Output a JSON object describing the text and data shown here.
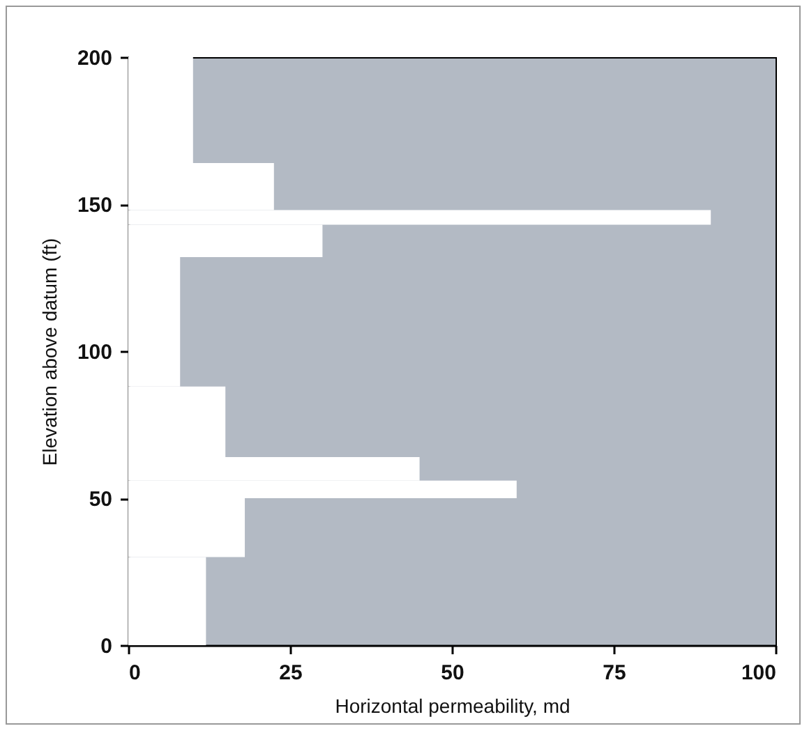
{
  "chart_data": {
    "type": "histogram",
    "orientation": "horizontal",
    "bins": [
      0,
      30,
      50,
      56,
      64,
      88,
      132,
      143,
      148,
      164,
      200
    ],
    "values": [
      12,
      18,
      60,
      45,
      15,
      8,
      30,
      90,
      22.5,
      10
    ],
    "color": "#ffffff",
    "xlim": [
      0,
      100
    ],
    "xticks": [
      0,
      25,
      50,
      75,
      100
    ],
    "ylim": [
      0,
      200
    ],
    "yticks": [
      0,
      50,
      100,
      150,
      200
    ],
    "xlabel": "Horizontal permeability, md",
    "ylabel": "Elevation above datum (ft)"
  }
}
